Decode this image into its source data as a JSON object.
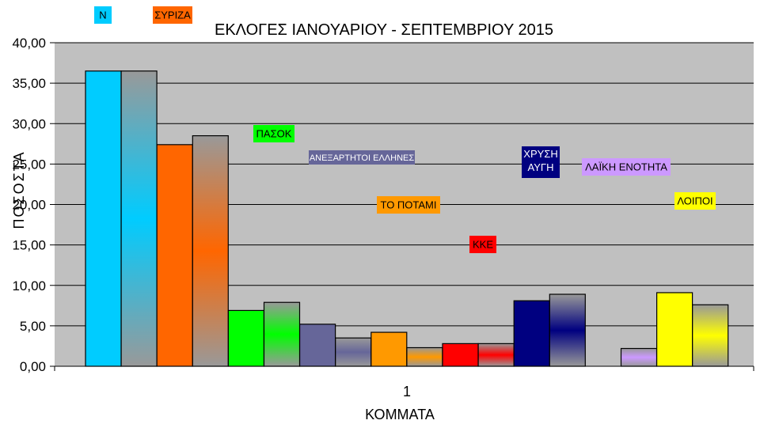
{
  "chart_data": {
    "type": "bar",
    "title": "ΕΚΛΟΓΕΣ ΙΑΝΟΥΑΡΙΟΥ - ΣΕΠΤΕΜΒΡΙΟΥ 2015",
    "xlabel": "ΚΟΜΜΑΤΑ",
    "ylabel": "ΠΟΣΟΣΤΑ",
    "categories": [
      "1"
    ],
    "ylim": [
      0,
      40
    ],
    "ytick_labels": [
      "0,00",
      "5,00",
      "10,00",
      "15,00",
      "20,00",
      "25,00",
      "30,00",
      "35,00",
      "40,00"
    ],
    "grid": true,
    "bars": [
      {
        "party": "Ν",
        "values": [
          36.5,
          36.5
        ],
        "color": "#00ccff",
        "label": "Ν"
      },
      {
        "party": "ΣΥΡΙΖΑ",
        "values": [
          27.4,
          28.5
        ],
        "color": "#ff6600",
        "label": "ΣΥΡΙΖΑ"
      },
      {
        "party": "ΠΑΣΟΚ",
        "values": [
          6.9,
          7.9
        ],
        "color": "#00ff00",
        "label": "ΠΑΣΟΚ"
      },
      {
        "party": "ΑΝΕΞΑΡΤΗΤΟΙ ΕΛΛΗΝΕΣ",
        "values": [
          5.2,
          3.5
        ],
        "color": "#666699",
        "label": "ΑΝΕΞΑΡΤΗΤΟΙ ΕΛΛΗΝΕΣ"
      },
      {
        "party": "ΤΟ ΠΟΤΑΜΙ",
        "values": [
          4.2,
          2.3
        ],
        "color": "#ff9900",
        "label": "ΤΟ ΠΟΤΑΜΙ"
      },
      {
        "party": "ΚΚΕ",
        "values": [
          2.8,
          2.8
        ],
        "color": "#ff0000",
        "label": "ΚΚΕ"
      },
      {
        "party": "ΧΡΥΣΗ ΑΥΓΗ",
        "values": [
          8.1,
          8.9
        ],
        "color": "#000080",
        "label": "ΧΡΥΣΗ ΑΥΓΗ"
      },
      {
        "party": "ΛΑΪΚΗ ΕΝΟΤΗΤΑ",
        "values": [
          null,
          2.2
        ],
        "color": "#cc99ff",
        "label": "ΛΑΪΚΗ ΕΝΟΤΗΤΑ"
      },
      {
        "party": "ΛΟΙΠΟΙ",
        "values": [
          9.1,
          7.6
        ],
        "color": "#ffff00",
        "label": "ΛΟΙΠΟΙ"
      }
    ]
  }
}
